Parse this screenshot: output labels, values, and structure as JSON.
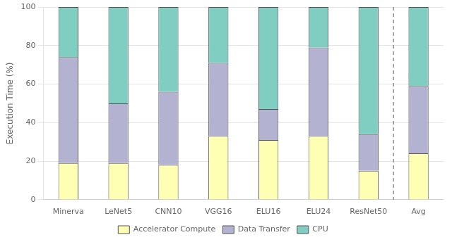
{
  "chart_data": {
    "type": "bar",
    "stacked": true,
    "categories": [
      "Minerva",
      "LeNet5",
      "CNN10",
      "VGG16",
      "ELU16",
      "ELU24",
      "ResNet50",
      "Avg"
    ],
    "series": [
      {
        "name": "Accelerator Compute",
        "color": "#ffffb3",
        "values": [
          19,
          19,
          18,
          33,
          31,
          33,
          15,
          24
        ]
      },
      {
        "name": "Data Transfer",
        "color": "#b3b3d1",
        "values": [
          55,
          31,
          38,
          38,
          16,
          46,
          19,
          35
        ]
      },
      {
        "name": "CPU",
        "color": "#80cdc1",
        "values": [
          26,
          50,
          44,
          29,
          53,
          21,
          66,
          41
        ]
      }
    ],
    "ylabel": "Execution Time (%)",
    "ylim": [
      0,
      100
    ],
    "yticks": [
      0,
      20,
      40,
      60,
      80,
      100
    ],
    "grid": true,
    "legend": "bottom"
  }
}
